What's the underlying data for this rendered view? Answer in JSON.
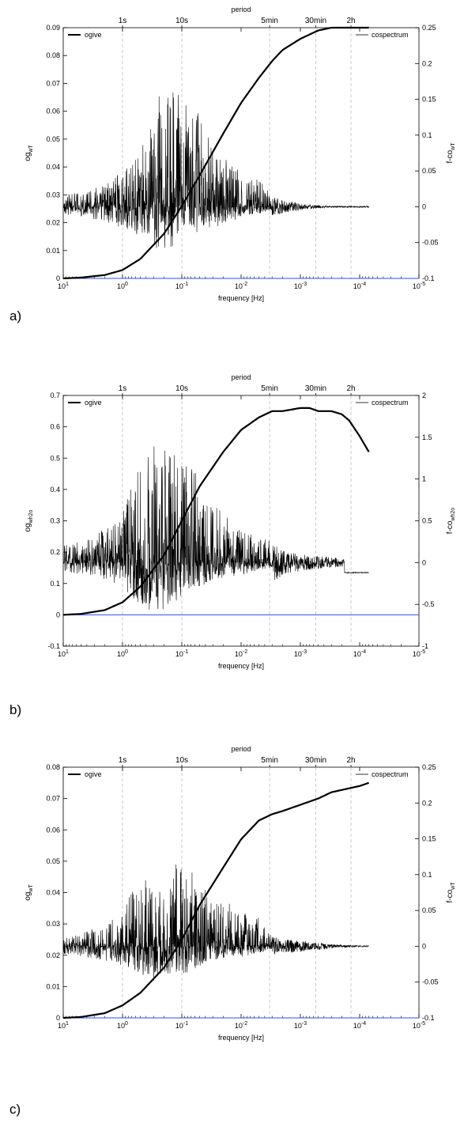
{
  "figure": {
    "panels": [
      {
        "label": "a)"
      },
      {
        "label": "b)"
      },
      {
        "label": "c)"
      }
    ]
  },
  "colors": {
    "ogive": "#000000",
    "cospectrum": "#000000",
    "zero_line": "#2a4dff",
    "grid": "#bdbdbd",
    "axes": "#000000"
  },
  "chart_data": [
    {
      "type": "line",
      "top_axis_label": "period",
      "period_ticks": [
        {
          "label": "1s",
          "freq": 1
        },
        {
          "label": "10s",
          "freq": 0.1
        },
        {
          "label": "5min",
          "freq": 0.0033
        },
        {
          "label": "30min",
          "freq": 0.00055
        },
        {
          "label": "2h",
          "freq": 0.00014
        }
      ],
      "xlabel": "frequency [Hz]",
      "xscale": "log",
      "x_direction": "decreasing",
      "xlim": [
        10,
        1e-05
      ],
      "x_ticks": [
        {
          "base": "10",
          "exp": "1",
          "value": 10
        },
        {
          "base": "10",
          "exp": "0",
          "value": 1
        },
        {
          "base": "10",
          "exp": "-1",
          "value": 0.1
        },
        {
          "base": "10",
          "exp": "-2",
          "value": 0.01
        },
        {
          "base": "10",
          "exp": "-3",
          "value": 0.001
        },
        {
          "base": "10",
          "exp": "-4",
          "value": 0.0001
        },
        {
          "base": "10",
          "exp": "-5",
          "value": 1e-05
        }
      ],
      "ylabel_left": {
        "base": "og",
        "sub": "wT"
      },
      "ylabel_right": {
        "base": "f-co",
        "sub": "wT"
      },
      "ylim_left": [
        0,
        0.09
      ],
      "ylim_right": [
        -0.1,
        0.25
      ],
      "yticks_left": [
        "0",
        "0.01",
        "0.02",
        "0.03",
        "0.04",
        "0.05",
        "0.06",
        "0.07",
        "0.08",
        "0.09"
      ],
      "yticks_left_values": [
        0,
        0.01,
        0.02,
        0.03,
        0.04,
        0.05,
        0.06,
        0.07,
        0.08,
        0.09
      ],
      "yticks_right": [
        "-0.1",
        "-0.05",
        "0",
        "0.05",
        "0.1",
        "0.15",
        "0.2",
        "0.25"
      ],
      "yticks_right_values": [
        -0.1,
        -0.05,
        0,
        0.05,
        0.1,
        0.15,
        0.2,
        0.25
      ],
      "legend": [
        {
          "name": "ogive",
          "position": "top-left"
        },
        {
          "name": "cospectrum",
          "position": "top-right"
        }
      ],
      "series": [
        {
          "name": "ogive",
          "axis": "left",
          "x": [
            10,
            5,
            2,
            1,
            0.5,
            0.2,
            0.1,
            0.05,
            0.02,
            0.01,
            0.005,
            0.003,
            0.002,
            0.001,
            0.0005,
            0.0003,
            0.0001,
            7e-05
          ],
          "y": [
            0,
            0.0003,
            0.0012,
            0.003,
            0.007,
            0.016,
            0.026,
            0.037,
            0.052,
            0.063,
            0.072,
            0.078,
            0.082,
            0.086,
            0.089,
            0.09,
            0.09,
            0.09
          ]
        },
        {
          "name": "cospectrum",
          "axis": "right",
          "x_range": [
            10,
            7e-05
          ],
          "baseline": 0,
          "envelope_x": [
            10,
            2,
            1,
            0.5,
            0.3,
            0.2,
            0.1,
            0.05,
            0.03,
            0.01,
            0.005,
            0.003,
            0.002,
            0.001,
            0.0007,
            0.0003,
            0.0001,
            7e-05
          ],
          "envelope_pos": [
            0.015,
            0.03,
            0.05,
            0.08,
            0.12,
            0.19,
            0.16,
            0.14,
            0.08,
            0.05,
            0.04,
            0.015,
            0.01,
            0.005,
            0.003,
            0.001,
            0.001,
            0.001
          ],
          "envelope_neg": [
            0.01,
            0.02,
            0.03,
            0.04,
            0.06,
            0.06,
            0.05,
            0.04,
            0.03,
            0.015,
            0.01,
            0.005,
            0.003,
            0.002,
            0.001,
            0.001,
            0.001,
            0.001
          ]
        }
      ],
      "zero_line": {
        "axis": "left",
        "y": 0
      },
      "grid": "vertical dashed at period ticks"
    },
    {
      "type": "line",
      "top_axis_label": "period",
      "period_ticks": [
        {
          "label": "1s",
          "freq": 1
        },
        {
          "label": "10s",
          "freq": 0.1
        },
        {
          "label": "5min",
          "freq": 0.0033
        },
        {
          "label": "30min",
          "freq": 0.00055
        },
        {
          "label": "2h",
          "freq": 0.00014
        }
      ],
      "xlabel": "frequency [Hz]",
      "xscale": "log",
      "x_direction": "decreasing",
      "xlim": [
        10,
        1e-05
      ],
      "x_ticks": [
        {
          "base": "10",
          "exp": "1",
          "value": 10
        },
        {
          "base": "10",
          "exp": "0",
          "value": 1
        },
        {
          "base": "10",
          "exp": "-1",
          "value": 0.1
        },
        {
          "base": "10",
          "exp": "-2",
          "value": 0.01
        },
        {
          "base": "10",
          "exp": "-3",
          "value": 0.001
        },
        {
          "base": "10",
          "exp": "-4",
          "value": 0.0001
        },
        {
          "base": "10",
          "exp": "-5",
          "value": 1e-05
        }
      ],
      "ylabel_left": {
        "base": "og",
        "sub": "wh2o"
      },
      "ylabel_right": {
        "base": "f-co",
        "sub": "wh2o"
      },
      "ylim_left": [
        -0.1,
        0.7
      ],
      "ylim_right": [
        -1,
        2
      ],
      "yticks_left": [
        "-0.1",
        "0",
        "0.1",
        "0.2",
        "0.3",
        "0.4",
        "0.5",
        "0.6",
        "0.7"
      ],
      "yticks_left_values": [
        -0.1,
        0,
        0.1,
        0.2,
        0.3,
        0.4,
        0.5,
        0.6,
        0.7
      ],
      "yticks_right": [
        "-1",
        "-0.5",
        "0",
        "0.5",
        "1",
        "1.5",
        "2"
      ],
      "yticks_right_values": [
        -1,
        -0.5,
        0,
        0.5,
        1,
        1.5,
        2
      ],
      "legend": [
        {
          "name": "ogive",
          "position": "top-left"
        },
        {
          "name": "cospectrum",
          "position": "top-right"
        }
      ],
      "series": [
        {
          "name": "ogive",
          "axis": "left",
          "x": [
            10,
            5,
            2,
            1,
            0.5,
            0.2,
            0.1,
            0.05,
            0.02,
            0.01,
            0.005,
            0.003,
            0.002,
            0.001,
            0.0007,
            0.0005,
            0.0003,
            0.0002,
            0.00015,
            0.0001,
            7e-05
          ],
          "y": [
            0,
            0.003,
            0.015,
            0.04,
            0.09,
            0.19,
            0.3,
            0.41,
            0.52,
            0.59,
            0.63,
            0.65,
            0.65,
            0.66,
            0.66,
            0.65,
            0.65,
            0.64,
            0.62,
            0.57,
            0.52
          ]
        },
        {
          "name": "cospectrum",
          "axis": "right",
          "x_range": [
            10,
            7e-05
          ],
          "baseline": 0,
          "envelope_x": [
            10,
            2,
            1,
            0.5,
            0.3,
            0.2,
            0.1,
            0.05,
            0.03,
            0.01,
            0.005,
            0.003,
            0.002,
            0.001,
            0.0005,
            0.0002,
            0.00015,
            7e-05
          ],
          "envelope_pos": [
            0.2,
            0.4,
            0.6,
            1.2,
            1.4,
            1.5,
            1.2,
            1.1,
            0.7,
            0.4,
            0.3,
            0.25,
            0.15,
            0.1,
            0.08,
            0.05,
            0.02,
            0.0
          ],
          "envelope_neg": [
            0.1,
            0.2,
            0.3,
            0.5,
            0.6,
            0.6,
            0.4,
            0.3,
            0.2,
            0.15,
            0.1,
            0.06,
            0.05,
            0.04,
            0.03,
            0.02,
            0.1,
            0.12
          ],
          "tail_y": -0.12
        }
      ],
      "zero_line": {
        "axis": "left",
        "y": 0
      },
      "grid": "vertical dashed at period ticks"
    },
    {
      "type": "line",
      "top_axis_label": "period",
      "period_ticks": [
        {
          "label": "1s",
          "freq": 1
        },
        {
          "label": "10s",
          "freq": 0.1
        },
        {
          "label": "5min",
          "freq": 0.0033
        },
        {
          "label": "30min",
          "freq": 0.00055
        },
        {
          "label": "2h",
          "freq": 0.00014
        }
      ],
      "xlabel": "frequency [Hz]",
      "xscale": "log",
      "x_direction": "decreasing",
      "xlim": [
        10,
        1e-05
      ],
      "x_ticks": [
        {
          "base": "10",
          "exp": "1",
          "value": 10
        },
        {
          "base": "10",
          "exp": "0",
          "value": 1
        },
        {
          "base": "10",
          "exp": "-1",
          "value": 0.1
        },
        {
          "base": "10",
          "exp": "-2",
          "value": 0.01
        },
        {
          "base": "10",
          "exp": "-3",
          "value": 0.001
        },
        {
          "base": "10",
          "exp": "-4",
          "value": 0.0001
        },
        {
          "base": "10",
          "exp": "-5",
          "value": 1e-05
        }
      ],
      "ylabel_left": {
        "base": "og",
        "sub": "wT"
      },
      "ylabel_right": {
        "base": "f-co",
        "sub": "wT"
      },
      "ylim_left": [
        0,
        0.08
      ],
      "ylim_right": [
        -0.1,
        0.25
      ],
      "yticks_left": [
        "0",
        "0.01",
        "0.02",
        "0.03",
        "0.04",
        "0.05",
        "0.06",
        "0.07",
        "0.08"
      ],
      "yticks_left_values": [
        0,
        0.01,
        0.02,
        0.03,
        0.04,
        0.05,
        0.06,
        0.07,
        0.08
      ],
      "yticks_right": [
        "-0.1",
        "-0.05",
        "0",
        "0.05",
        "0.1",
        "0.15",
        "0.2",
        "0.25"
      ],
      "yticks_right_values": [
        -0.1,
        -0.05,
        0,
        0.05,
        0.1,
        0.15,
        0.2,
        0.25
      ],
      "legend": [
        {
          "name": "ogive",
          "position": "top-left"
        },
        {
          "name": "cospectrum",
          "position": "top-right"
        }
      ],
      "series": [
        {
          "name": "ogive",
          "axis": "left",
          "x": [
            10,
            5,
            2,
            1,
            0.5,
            0.2,
            0.1,
            0.05,
            0.02,
            0.01,
            0.005,
            0.003,
            0.002,
            0.001,
            0.0005,
            0.0003,
            0.0001,
            7e-05
          ],
          "y": [
            0,
            0.0003,
            0.0015,
            0.004,
            0.008,
            0.016,
            0.025,
            0.036,
            0.048,
            0.057,
            0.063,
            0.065,
            0.066,
            0.068,
            0.07,
            0.072,
            0.074,
            0.075
          ]
        },
        {
          "name": "cospectrum",
          "axis": "right",
          "x_range": [
            10,
            7e-05
          ],
          "baseline": 0,
          "envelope_x": [
            10,
            2,
            1,
            0.5,
            0.3,
            0.2,
            0.1,
            0.05,
            0.03,
            0.01,
            0.005,
            0.003,
            0.002,
            0.001,
            0.0005,
            0.0003,
            0.0001,
            7e-05
          ],
          "envelope_pos": [
            0.01,
            0.03,
            0.05,
            0.1,
            0.08,
            0.09,
            0.13,
            0.09,
            0.07,
            0.06,
            0.04,
            0.015,
            0.01,
            0.008,
            0.005,
            0.003,
            0.001,
            0.001
          ],
          "envelope_neg": [
            0.01,
            0.02,
            0.03,
            0.04,
            0.05,
            0.04,
            0.04,
            0.03,
            0.02,
            0.015,
            0.01,
            0.005,
            0.003,
            0.002,
            0.001,
            0.001,
            0.001,
            0.001
          ]
        }
      ],
      "zero_line": {
        "axis": "left",
        "y": 0
      },
      "grid": "vertical dashed at period ticks"
    }
  ]
}
